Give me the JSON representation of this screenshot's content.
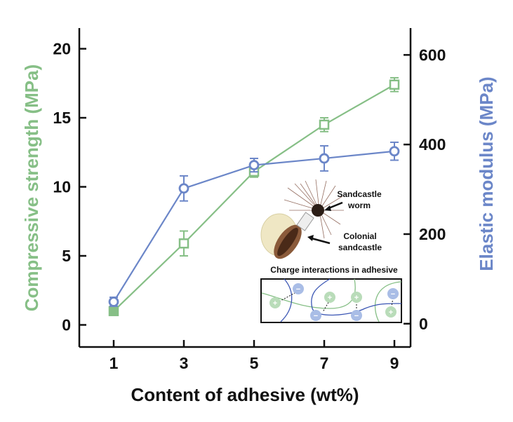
{
  "chart_data": {
    "type": "line",
    "title": "",
    "xlabel": "Content of adhesive (wt%)",
    "x": [
      1,
      3,
      5,
      7,
      9
    ],
    "xticks": [
      "1",
      "3",
      "5",
      "7",
      "9"
    ],
    "series": [
      {
        "name": "Compressive strength (MPa)",
        "axis": "left",
        "marker": "square",
        "color": "#86bf86",
        "values": [
          1.0,
          5.9,
          11.1,
          14.5,
          17.4
        ],
        "errors": [
          0.2,
          0.9,
          0.4,
          0.5,
          0.5
        ]
      },
      {
        "name": "Elastic modulus (MPa)",
        "axis": "right",
        "marker": "circle",
        "color": "#6b86c8",
        "values": [
          49,
          302,
          354,
          369,
          385
        ],
        "errors": [
          10,
          28,
          15,
          28,
          20
        ]
      }
    ],
    "y_left": {
      "label": "Compressive strength (MPa)",
      "lim": [
        -1.6,
        21.5
      ],
      "ticks": [
        0,
        5,
        10,
        15,
        20
      ],
      "color": "#86bf86"
    },
    "y_right": {
      "label": "Elastic modulus (MPa)",
      "lim": [
        -52,
        660
      ],
      "ticks": [
        0,
        200,
        400,
        600
      ],
      "color": "#6b86c8"
    },
    "grid": false
  },
  "inset": {
    "worm_label": "Sandcastle worm",
    "worm_label_lines": [
      "Sandcastle",
      "worm"
    ],
    "colony_label": "Colonial sandcastle",
    "colony_label_lines": [
      "Colonial",
      "sandcastle"
    ],
    "charge_title": "Charge interactions in adhesive",
    "plus": "+",
    "minus": "−"
  }
}
